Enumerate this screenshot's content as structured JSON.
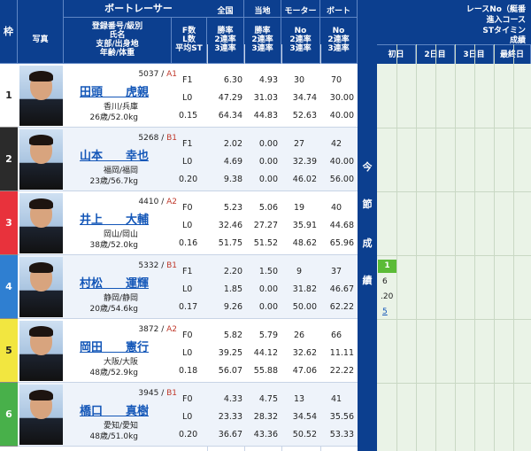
{
  "header": {
    "frame": "枠",
    "photo": "写真",
    "racer_group": "ボートレーサー",
    "racer_fields": [
      "登録番号/級別",
      "氏名",
      "支部/出身地",
      "年齢/体重"
    ],
    "stat_fields": [
      "F数",
      "L数",
      "平均ST"
    ],
    "national": "全国",
    "national_sub": [
      "勝率",
      "2連率",
      "3連率"
    ],
    "local": "当地",
    "local_sub": [
      "勝率",
      "2連率",
      "3連率"
    ],
    "motor": "モーター",
    "motor_sub": [
      "No",
      "2連率",
      "3連率"
    ],
    "boat": "ボート",
    "boat_sub": [
      "No",
      "2連率",
      "3連率"
    ],
    "results_lines": [
      "レースNo（艇番",
      "進入コース",
      "STタイミン",
      "成績"
    ],
    "days": [
      "初日",
      "2日目",
      "3日目",
      "最終日"
    ],
    "side_label": [
      "今",
      "節",
      "成",
      "績"
    ]
  },
  "racers": [
    {
      "frame": "1",
      "reg": "5037",
      "cls": "A1",
      "name": "田頭　　虎親",
      "branch": "香川/兵庫",
      "agewt": "26歳/52.0kg",
      "f": "F1",
      "l": "L0",
      "st": "0.15",
      "nat": [
        "6.30",
        "47.29",
        "64.34"
      ],
      "loc": [
        "4.93",
        "31.03",
        "44.83"
      ],
      "mot": [
        "30",
        "34.74",
        "52.63"
      ],
      "boa": [
        "70",
        "30.00",
        "40.00"
      ]
    },
    {
      "frame": "2",
      "reg": "5268",
      "cls": "B1",
      "name": "山本　　幸也",
      "branch": "福岡/福岡",
      "agewt": "23歳/56.7kg",
      "f": "F1",
      "l": "L0",
      "st": "0.20",
      "nat": [
        "2.02",
        "4.69",
        "9.38"
      ],
      "loc": [
        "0.00",
        "0.00",
        "0.00"
      ],
      "mot": [
        "27",
        "32.39",
        "46.02"
      ],
      "boa": [
        "42",
        "40.00",
        "56.00"
      ]
    },
    {
      "frame": "3",
      "reg": "4410",
      "cls": "A2",
      "name": "井上　　大輔",
      "branch": "岡山/岡山",
      "agewt": "38歳/52.0kg",
      "f": "F0",
      "l": "L0",
      "st": "0.16",
      "nat": [
        "5.23",
        "32.46",
        "51.75"
      ],
      "loc": [
        "5.06",
        "27.27",
        "51.52"
      ],
      "mot": [
        "19",
        "35.91",
        "48.62"
      ],
      "boa": [
        "40",
        "44.68",
        "65.96"
      ]
    },
    {
      "frame": "4",
      "reg": "5332",
      "cls": "B1",
      "name": "村松　　運輝",
      "branch": "静岡/静岡",
      "agewt": "20歳/54.6kg",
      "f": "F1",
      "l": "L0",
      "st": "0.17",
      "nat": [
        "2.20",
        "1.85",
        "9.26"
      ],
      "loc": [
        "1.50",
        "0.00",
        "0.00"
      ],
      "mot": [
        "9",
        "31.82",
        "50.00"
      ],
      "boa": [
        "37",
        "46.67",
        "62.22"
      ]
    },
    {
      "frame": "5",
      "reg": "3872",
      "cls": "A2",
      "name": "岡田　　憲行",
      "branch": "大阪/大阪",
      "agewt": "48歳/52.9kg",
      "f": "F0",
      "l": "L0",
      "st": "0.18",
      "nat": [
        "5.82",
        "39.25",
        "56.07"
      ],
      "loc": [
        "5.79",
        "44.12",
        "55.88"
      ],
      "mot": [
        "26",
        "32.62",
        "47.06"
      ],
      "boa": [
        "66",
        "11.11",
        "22.22"
      ]
    },
    {
      "frame": "6",
      "reg": "3945",
      "cls": "B1",
      "name": "橋口　　真樹",
      "branch": "愛知/愛知",
      "agewt": "48歳/51.0kg",
      "f": "F0",
      "l": "L0",
      "st": "0.20",
      "nat": [
        "4.33",
        "23.33",
        "36.67"
      ],
      "loc": [
        "4.75",
        "28.32",
        "43.36"
      ],
      "mot": [
        "13",
        "34.54",
        "50.52"
      ],
      "boa": [
        "41",
        "35.56",
        "53.33"
      ]
    }
  ],
  "results": {
    "racer4_day1": {
      "race": "1",
      "course": "6",
      "st": ".20",
      "finish": "5"
    }
  },
  "colors": {
    "header_blue": "#0c3f8f",
    "frame": [
      "#ffffff",
      "#2b2b2b",
      "#e8323c",
      "#2f7fd1",
      "#f2e640",
      "#48b04a"
    ],
    "rank_green": "#5bbb37"
  }
}
